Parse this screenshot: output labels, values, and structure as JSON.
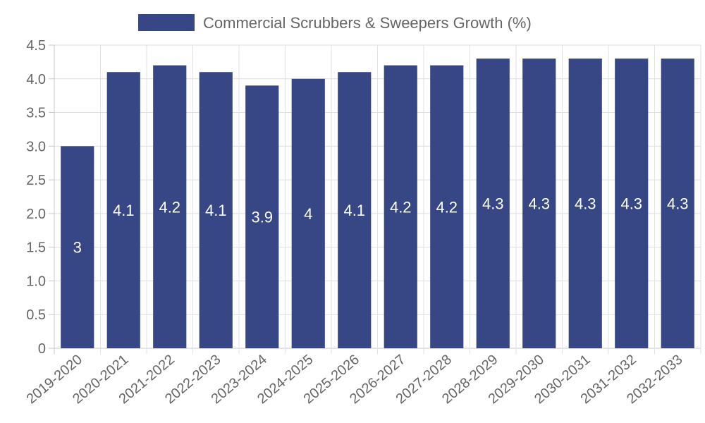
{
  "chart_data": {
    "type": "bar",
    "categories": [
      "2019-2020",
      "2020-2021",
      "2021-2022",
      "2022-2023",
      "2023-2024",
      "2024-2025",
      "2025-2026",
      "2026-2027",
      "2027-2028",
      "2028-2029",
      "2029-2030",
      "2030-2031",
      "2031-2032",
      "2032-2033"
    ],
    "series": [
      {
        "name": "Commercial Scrubbers & Sweepers Growth (%)",
        "values": [
          3,
          4.1,
          4.2,
          4.1,
          3.9,
          4,
          4.1,
          4.2,
          4.2,
          4.3,
          4.3,
          4.3,
          4.3,
          4.3
        ],
        "color": "#374785"
      }
    ],
    "data_labels": [
      "3",
      "4.1",
      "4.2",
      "4.1",
      "3.9",
      "4",
      "4.1",
      "4.2",
      "4.2",
      "4.3",
      "4.3",
      "4.3",
      "4.3",
      "4.3"
    ],
    "y_ticks": [
      "0",
      "0.5",
      "1.0",
      "1.5",
      "2.0",
      "2.5",
      "3.0",
      "3.5",
      "4.0",
      "4.5"
    ],
    "ylim": [
      0,
      4.5
    ],
    "grid": true,
    "legend_position": "top-center"
  }
}
